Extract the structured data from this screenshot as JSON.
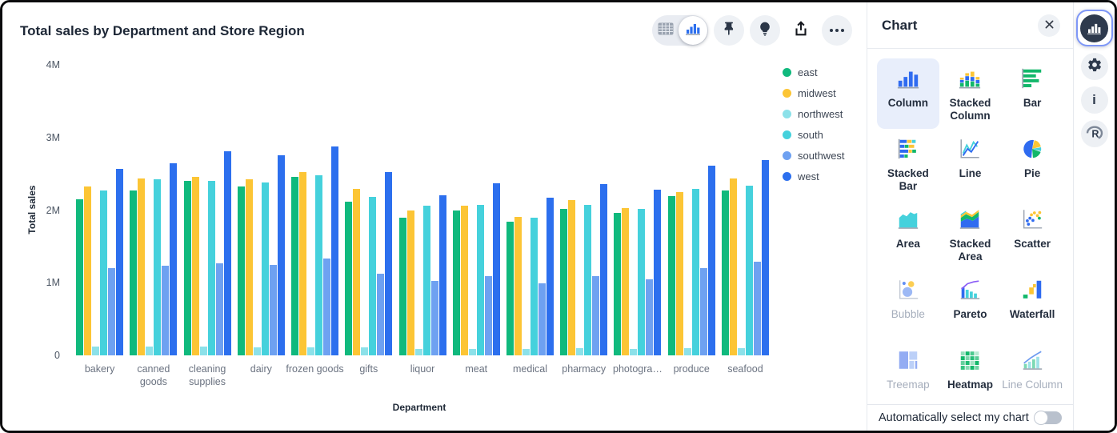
{
  "header": {
    "title": "Total sales by Department and Store Region"
  },
  "toolbar": {
    "view_toggle": {
      "options": [
        "table",
        "chart"
      ],
      "selected": "chart"
    },
    "buttons": [
      {
        "name": "pin",
        "icon": "pin-icon"
      },
      {
        "name": "insights",
        "icon": "lightbulb-icon"
      },
      {
        "name": "share",
        "icon": "share-icon"
      },
      {
        "name": "more",
        "icon": "ellipsis-icon"
      }
    ]
  },
  "chart_data": {
    "type": "bar",
    "title": "Total sales by Department and Store Region",
    "xlabel": "Department",
    "ylabel": "Total sales",
    "unit": "millions",
    "ylim": [
      0,
      4
    ],
    "grid": false,
    "legend_position": "right",
    "yticks": [
      {
        "value": 0,
        "label": "0"
      },
      {
        "value": 1,
        "label": "1M"
      },
      {
        "value": 2,
        "label": "2M"
      },
      {
        "value": 3,
        "label": "3M"
      },
      {
        "value": 4,
        "label": "4M"
      }
    ],
    "categories": [
      "bakery",
      "canned goods",
      "cleaning supplies",
      "dairy",
      "frozen goods",
      "gifts",
      "liquor",
      "meat",
      "medical",
      "pharmacy",
      "photogra…",
      "produce",
      "seafood"
    ],
    "series": [
      {
        "name": "east",
        "color": "#10b97d",
        "values": [
          2.15,
          2.27,
          2.4,
          2.32,
          2.46,
          2.12,
          1.9,
          1.99,
          1.84,
          2.02,
          1.96,
          2.19,
          2.27
        ]
      },
      {
        "name": "midwest",
        "color": "#fcc535",
        "values": [
          2.32,
          2.43,
          2.46,
          2.42,
          2.52,
          2.29,
          2.0,
          2.06,
          1.91,
          2.14,
          2.03,
          2.25,
          2.44
        ]
      },
      {
        "name": "northwest",
        "color": "#8ce1e9",
        "values": [
          0.12,
          0.12,
          0.12,
          0.11,
          0.11,
          0.11,
          0.09,
          0.09,
          0.09,
          0.1,
          0.09,
          0.1,
          0.1
        ]
      },
      {
        "name": "south",
        "color": "#45d1dc",
        "values": [
          2.27,
          2.42,
          2.4,
          2.38,
          2.48,
          2.18,
          2.06,
          2.07,
          1.9,
          2.07,
          2.02,
          2.29,
          2.34
        ]
      },
      {
        "name": "southwest",
        "color": "#6ea1f1",
        "values": [
          1.2,
          1.23,
          1.27,
          1.24,
          1.33,
          1.12,
          1.02,
          1.09,
          0.99,
          1.09,
          1.05,
          1.2,
          1.29
        ]
      },
      {
        "name": "west",
        "color": "#2c6fee",
        "values": [
          2.57,
          2.65,
          2.81,
          2.76,
          2.88,
          2.52,
          2.2,
          2.37,
          2.17,
          2.36,
          2.28,
          2.61,
          2.69
        ]
      }
    ]
  },
  "panel": {
    "title": "Chart",
    "chart_types": [
      {
        "label": "Column",
        "icon": "column-icon",
        "state": "selected"
      },
      {
        "label": "Stacked Column",
        "icon": "stacked-column-icon",
        "state": "normal"
      },
      {
        "label": "Bar",
        "icon": "bar-icon",
        "state": "normal"
      },
      {
        "label": "Stacked Bar",
        "icon": "stacked-bar-icon",
        "state": "normal"
      },
      {
        "label": "Line",
        "icon": "line-icon",
        "state": "normal"
      },
      {
        "label": "Pie",
        "icon": "pie-icon",
        "state": "normal"
      },
      {
        "label": "Area",
        "icon": "area-icon",
        "state": "normal"
      },
      {
        "label": "Stacked Area",
        "icon": "stacked-area-icon",
        "state": "normal"
      },
      {
        "label": "Scatter",
        "icon": "scatter-icon",
        "state": "normal"
      },
      {
        "label": "Bubble",
        "icon": "bubble-icon",
        "state": "disabled"
      },
      {
        "label": "Pareto",
        "icon": "pareto-icon",
        "state": "normal"
      },
      {
        "label": "Waterfall",
        "icon": "waterfall-icon",
        "state": "normal"
      },
      {
        "label": "Treemap",
        "icon": "treemap-icon",
        "state": "disabled"
      },
      {
        "label": "Heatmap",
        "icon": "heatmap-icon",
        "state": "normal"
      },
      {
        "label": "Line Column",
        "icon": "line-column-icon",
        "state": "disabled"
      }
    ],
    "auto_select_label": "Automatically select my chart",
    "auto_select_enabled": false
  },
  "rail": {
    "buttons": [
      {
        "name": "chart",
        "icon": "chart-bars-icon",
        "selected": true
      },
      {
        "name": "settings",
        "icon": "gear-icon",
        "selected": false
      },
      {
        "name": "info",
        "icon": "info-icon",
        "selected": false
      },
      {
        "name": "r-report",
        "icon": "r-logo-icon",
        "selected": false
      }
    ]
  },
  "colors": {
    "accent_blue": "#2c6fee",
    "selected_bg": "#e8eefb",
    "rail_dark": "#2e3a4d"
  }
}
